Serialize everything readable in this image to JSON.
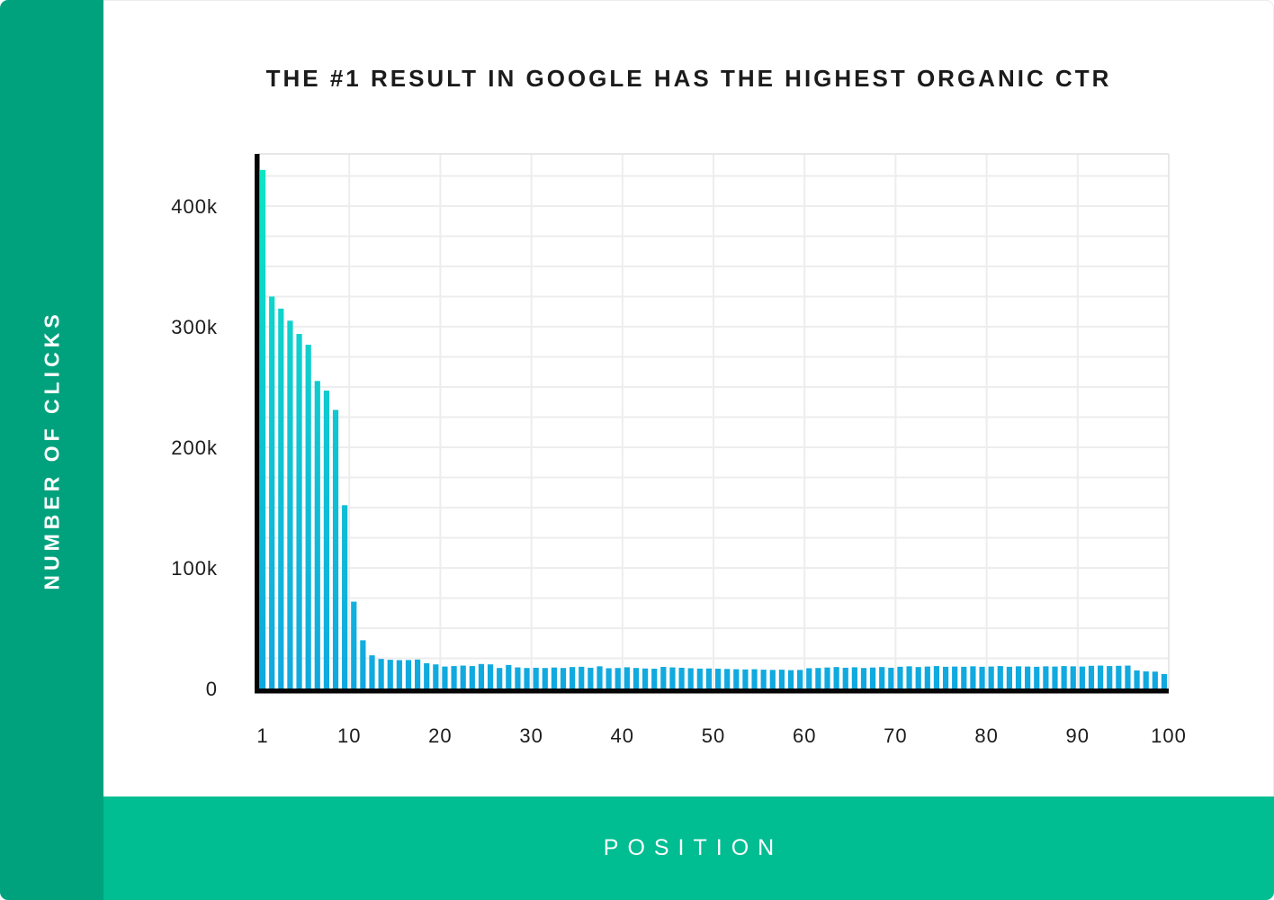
{
  "page": {
    "title": "THE #1 RESULT IN GOOGLE HAS THE HIGHEST ORGANIC CTR",
    "left_band_label": "NUMBER OF CLICKS",
    "bottom_band_label": "POSITION"
  },
  "colors": {
    "sidebar_green": "#00A27D",
    "bottom_band_green": "#00BD92",
    "bar_gradient_top": "#0EE6C2",
    "bar_gradient_bottom": "#10A8E0",
    "axis_black": "#050505",
    "gridline_gray": "#ededed",
    "plot_border_gray": "#e7e7e7",
    "text_dark": "#1c1c1c",
    "background": "#ffffff"
  },
  "chart_data": {
    "type": "bar",
    "title": "THE #1 RESULT IN GOOGLE HAS THE HIGHEST ORGANIC CTR",
    "xlabel": "POSITION",
    "ylabel": "NUMBER OF CLICKS",
    "ylim": [
      0,
      443000
    ],
    "grid": {
      "horizontal_step": 25000,
      "vertical_step_positions": 10,
      "visible": true
    },
    "legend": {
      "visible": false
    },
    "ytick_values": [
      0,
      100000,
      200000,
      300000,
      400000
    ],
    "ytick_labels": [
      "0",
      "100k",
      "200k",
      "300k",
      "400k"
    ],
    "xtick_values": [
      1,
      10,
      20,
      30,
      40,
      50,
      60,
      70,
      80,
      90,
      100
    ],
    "xtick_labels": [
      "1",
      "10",
      "20",
      "30",
      "40",
      "50",
      "60",
      "70",
      "80",
      "90",
      "100"
    ],
    "x_positions": [
      1,
      2,
      3,
      4,
      5,
      6,
      7,
      8,
      9,
      10,
      11,
      12,
      13,
      14,
      15,
      16,
      17,
      18,
      19,
      20,
      21,
      22,
      23,
      24,
      25,
      26,
      27,
      28,
      29,
      30,
      31,
      32,
      33,
      34,
      35,
      36,
      37,
      38,
      39,
      40,
      41,
      42,
      43,
      44,
      45,
      46,
      47,
      48,
      49,
      50,
      51,
      52,
      53,
      54,
      55,
      56,
      57,
      58,
      59,
      60,
      61,
      62,
      63,
      64,
      65,
      66,
      67,
      68,
      69,
      70,
      71,
      72,
      73,
      74,
      75,
      76,
      77,
      78,
      79,
      80,
      81,
      82,
      83,
      84,
      85,
      86,
      87,
      88,
      89,
      90,
      91,
      92,
      93,
      94,
      95,
      96,
      97,
      98,
      99,
      100
    ],
    "values": [
      430000,
      325000,
      315000,
      305000,
      294000,
      285000,
      255000,
      247000,
      231000,
      152000,
      72000,
      40000,
      27500,
      24500,
      23800,
      23500,
      23600,
      24000,
      21000,
      20000,
      18200,
      18600,
      19000,
      18600,
      20300,
      20000,
      17000,
      19500,
      17500,
      17000,
      17200,
      17000,
      17400,
      17000,
      17800,
      18000,
      17200,
      18400,
      16800,
      17000,
      17600,
      17000,
      16600,
      16400,
      17900,
      17500,
      17200,
      16800,
      16500,
      16600,
      16400,
      16200,
      16000,
      15800,
      16000,
      15600,
      15400,
      15600,
      15200,
      15400,
      16800,
      17000,
      17400,
      17800,
      17200,
      17600,
      17000,
      17400,
      17800,
      17200,
      18000,
      18400,
      17800,
      18200,
      18600,
      18000,
      18200,
      18000,
      18400,
      18000,
      18200,
      18600,
      18000,
      18400,
      18200,
      18000,
      18400,
      18200,
      18600,
      18400,
      18200,
      18800,
      19000,
      18600,
      18800,
      19000,
      15000,
      14200,
      14000,
      12000
    ]
  }
}
